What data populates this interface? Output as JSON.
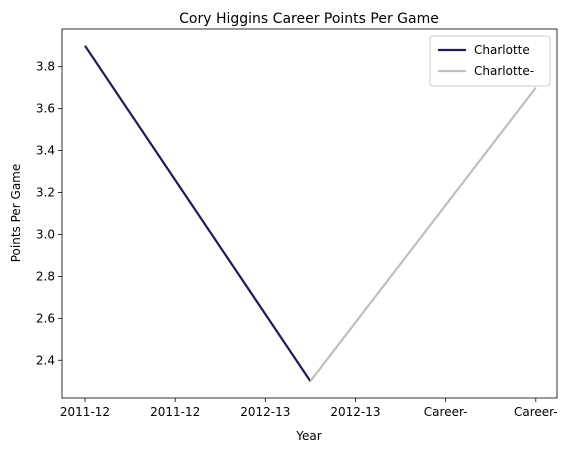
{
  "chart_data": {
    "type": "line",
    "title": "Cory Higgins Career Points Per Game",
    "xlabel": "Year",
    "ylabel": "Points Per Game",
    "categories": [
      "2011-12",
      "2011-12",
      "2012-13",
      "2012-13",
      "Career-",
      "Career-"
    ],
    "x_ticks": [
      0,
      1,
      2,
      3,
      4,
      5
    ],
    "ylim": [
      2.22,
      3.98
    ],
    "y_ticks": [
      2.4,
      2.6,
      2.8,
      3.0,
      3.2,
      3.4,
      3.6,
      3.8
    ],
    "grid": false,
    "legend_position": "top-right",
    "series": [
      {
        "name": "Charlotte",
        "color": "#1f1a5c",
        "points": [
          [
            0,
            3.9
          ],
          [
            2.5,
            2.3
          ]
        ]
      },
      {
        "name": "Charlotte-",
        "color": "#bfbfbf",
        "points": [
          [
            2.5,
            2.3
          ],
          [
            5,
            3.7
          ]
        ]
      }
    ]
  }
}
